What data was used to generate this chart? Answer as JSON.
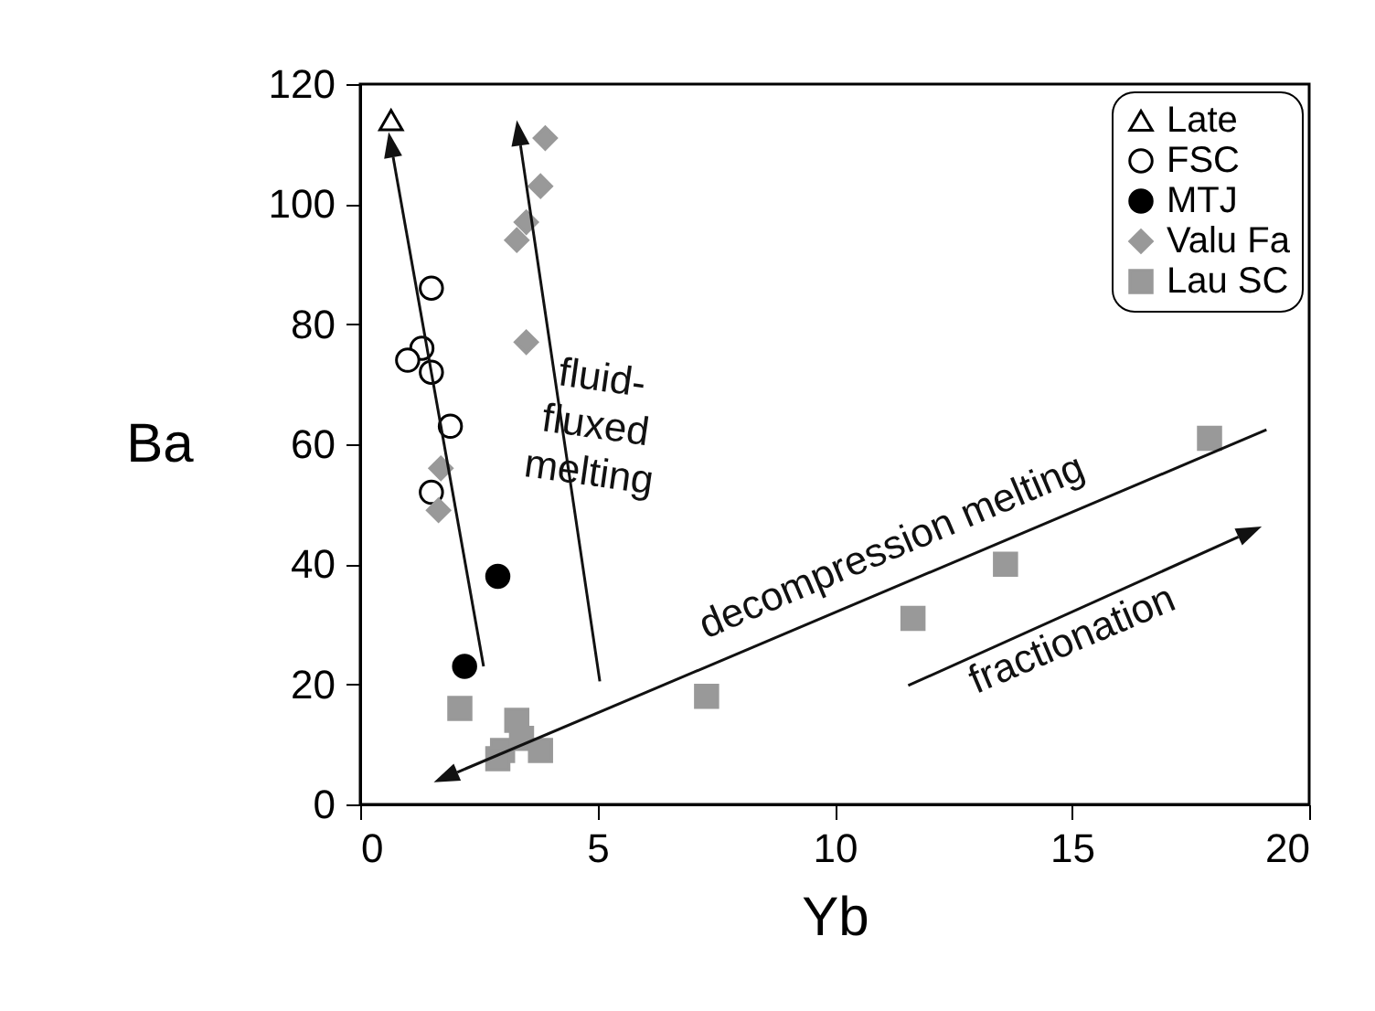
{
  "chart_data": {
    "type": "scatter",
    "xlabel": "Yb",
    "ylabel": "Ba",
    "xlim": [
      0,
      20
    ],
    "ylim": [
      0,
      120
    ],
    "xticks": [
      0,
      5,
      10,
      15,
      20
    ],
    "yticks": [
      0,
      20,
      40,
      60,
      80,
      100,
      120
    ],
    "grid": false,
    "legend": "top right",
    "series": [
      {
        "name": "Late",
        "color": "#000000",
        "marker": "triangle",
        "x": [
          0.65
        ],
        "values": [
          114
        ]
      },
      {
        "name": "FSC",
        "color": "#000000",
        "marker": "circle",
        "x": [
          1.5,
          1.3,
          1.0,
          1.5,
          1.9,
          1.5
        ],
        "values": [
          86,
          76,
          74,
          72,
          63,
          52
        ]
      },
      {
        "name": "MTJ",
        "color": "#000000",
        "marker": "circle",
        "x": [
          2.9,
          2.2
        ],
        "values": [
          38,
          23
        ]
      },
      {
        "name": "Valu Fa",
        "color": "#999999",
        "marker": "diamond",
        "x": [
          3.9,
          3.8,
          3.5,
          3.3,
          3.5,
          1.7,
          1.65
        ],
        "values": [
          111,
          103,
          97,
          94,
          77,
          56,
          49
        ]
      },
      {
        "name": "Lau SC",
        "color": "#999999",
        "marker": "square",
        "x": [
          2.1,
          3.3,
          3.0,
          2.9,
          3.4,
          3.8,
          7.3,
          11.65,
          13.6,
          17.9
        ],
        "values": [
          16,
          14,
          9,
          7.6,
          11,
          9,
          18,
          31,
          40,
          61
        ]
      }
    ],
    "annotations": [
      "fluid-\nfluxed\nmelting",
      "decompression melting",
      "fractionation"
    ]
  }
}
